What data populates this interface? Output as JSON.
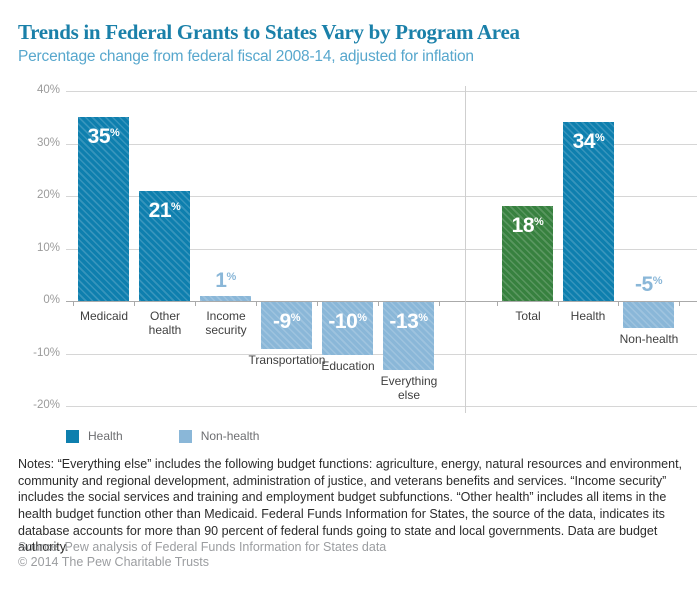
{
  "header": {
    "title": "Trends in Federal Grants to States Vary by Program Area",
    "subtitle": "Percentage change from federal fiscal 2008-14, adjusted for inflation"
  },
  "chart_data": {
    "type": "bar",
    "title": "Trends in Federal Grants to States Vary by Program Area",
    "subtitle": "Percentage change from federal fiscal 2008-14, adjusted for inflation",
    "xlabel": "",
    "ylabel": "",
    "ylim": [
      -20,
      40
    ],
    "grid": true,
    "unit_suffix": "%",
    "y_ticks": [
      {
        "value": 40,
        "label": "40%"
      },
      {
        "value": 30,
        "label": "30%"
      },
      {
        "value": 20,
        "label": "20%"
      },
      {
        "value": 10,
        "label": "10%"
      },
      {
        "value": 0,
        "label": "0%"
      },
      {
        "value": -10,
        "label": "-10%"
      },
      {
        "value": -20,
        "label": "-20%"
      }
    ],
    "colors": {
      "health": "#0e7fae",
      "non_health": "#8ab7d8",
      "total": "#37813f",
      "grid": "#d6d6d6",
      "axis": "#aaaaaa",
      "title": "#1a80a9",
      "subtitle": "#57a7cd"
    },
    "panels": [
      {
        "bars": [
          {
            "category": "Medicaid",
            "label_lines": [
              "Medicaid"
            ],
            "value": 35,
            "display": "35",
            "group": "health",
            "value_label": "inside"
          },
          {
            "category": "Other health",
            "label_lines": [
              "Other",
              "health"
            ],
            "value": 21,
            "display": "21",
            "group": "health",
            "value_label": "inside"
          },
          {
            "category": "Income security",
            "label_lines": [
              "Income",
              "security"
            ],
            "value": 1,
            "display": "1",
            "group": "non_health",
            "value_label": "above"
          },
          {
            "category": "Transportation",
            "label_lines": [
              "Transportation"
            ],
            "value": -9,
            "display": "-9",
            "group": "non_health",
            "value_label": "inside"
          },
          {
            "category": "Education",
            "label_lines": [
              "Education"
            ],
            "value": -10,
            "display": "-10",
            "group": "non_health",
            "value_label": "inside"
          },
          {
            "category": "Everything else",
            "label_lines": [
              "Everything",
              "else"
            ],
            "value": -13,
            "display": "-13",
            "group": "non_health",
            "value_label": "inside"
          }
        ]
      },
      {
        "bars": [
          {
            "category": "Total",
            "label_lines": [
              "Total"
            ],
            "value": 18,
            "display": "18",
            "group": "total",
            "value_label": "inside"
          },
          {
            "category": "Health",
            "label_lines": [
              "Health"
            ],
            "value": 34,
            "display": "34",
            "group": "health",
            "value_label": "inside"
          },
          {
            "category": "Non-health",
            "label_lines": [
              "Non-health"
            ],
            "value": -5,
            "display": "-5",
            "group": "non_health",
            "value_label": "above"
          }
        ]
      }
    ],
    "legend": [
      {
        "label": "Health",
        "group": "health"
      },
      {
        "label": "Non-health",
        "group": "non_health"
      }
    ],
    "legend_position": "bottom-left"
  },
  "notes": "Notes: “Everything else” includes the following budget functions: agriculture, energy, natural resources and environment, community and regional development, administration of justice, and veterans benefits and services. “Income security” includes the social services and training and employment budget subfunctions. “Other health” includes all items in the health budget function other than Medicaid. Federal Funds Information for States, the source of the data, indicates its database accounts for more than 90 percent of federal funds going to state and local governments. Data are budget authority.",
  "source_line": "Source: Pew analysis of Federal Funds Information for States data",
  "copyright_line": "© 2014 The Pew Charitable Trusts"
}
